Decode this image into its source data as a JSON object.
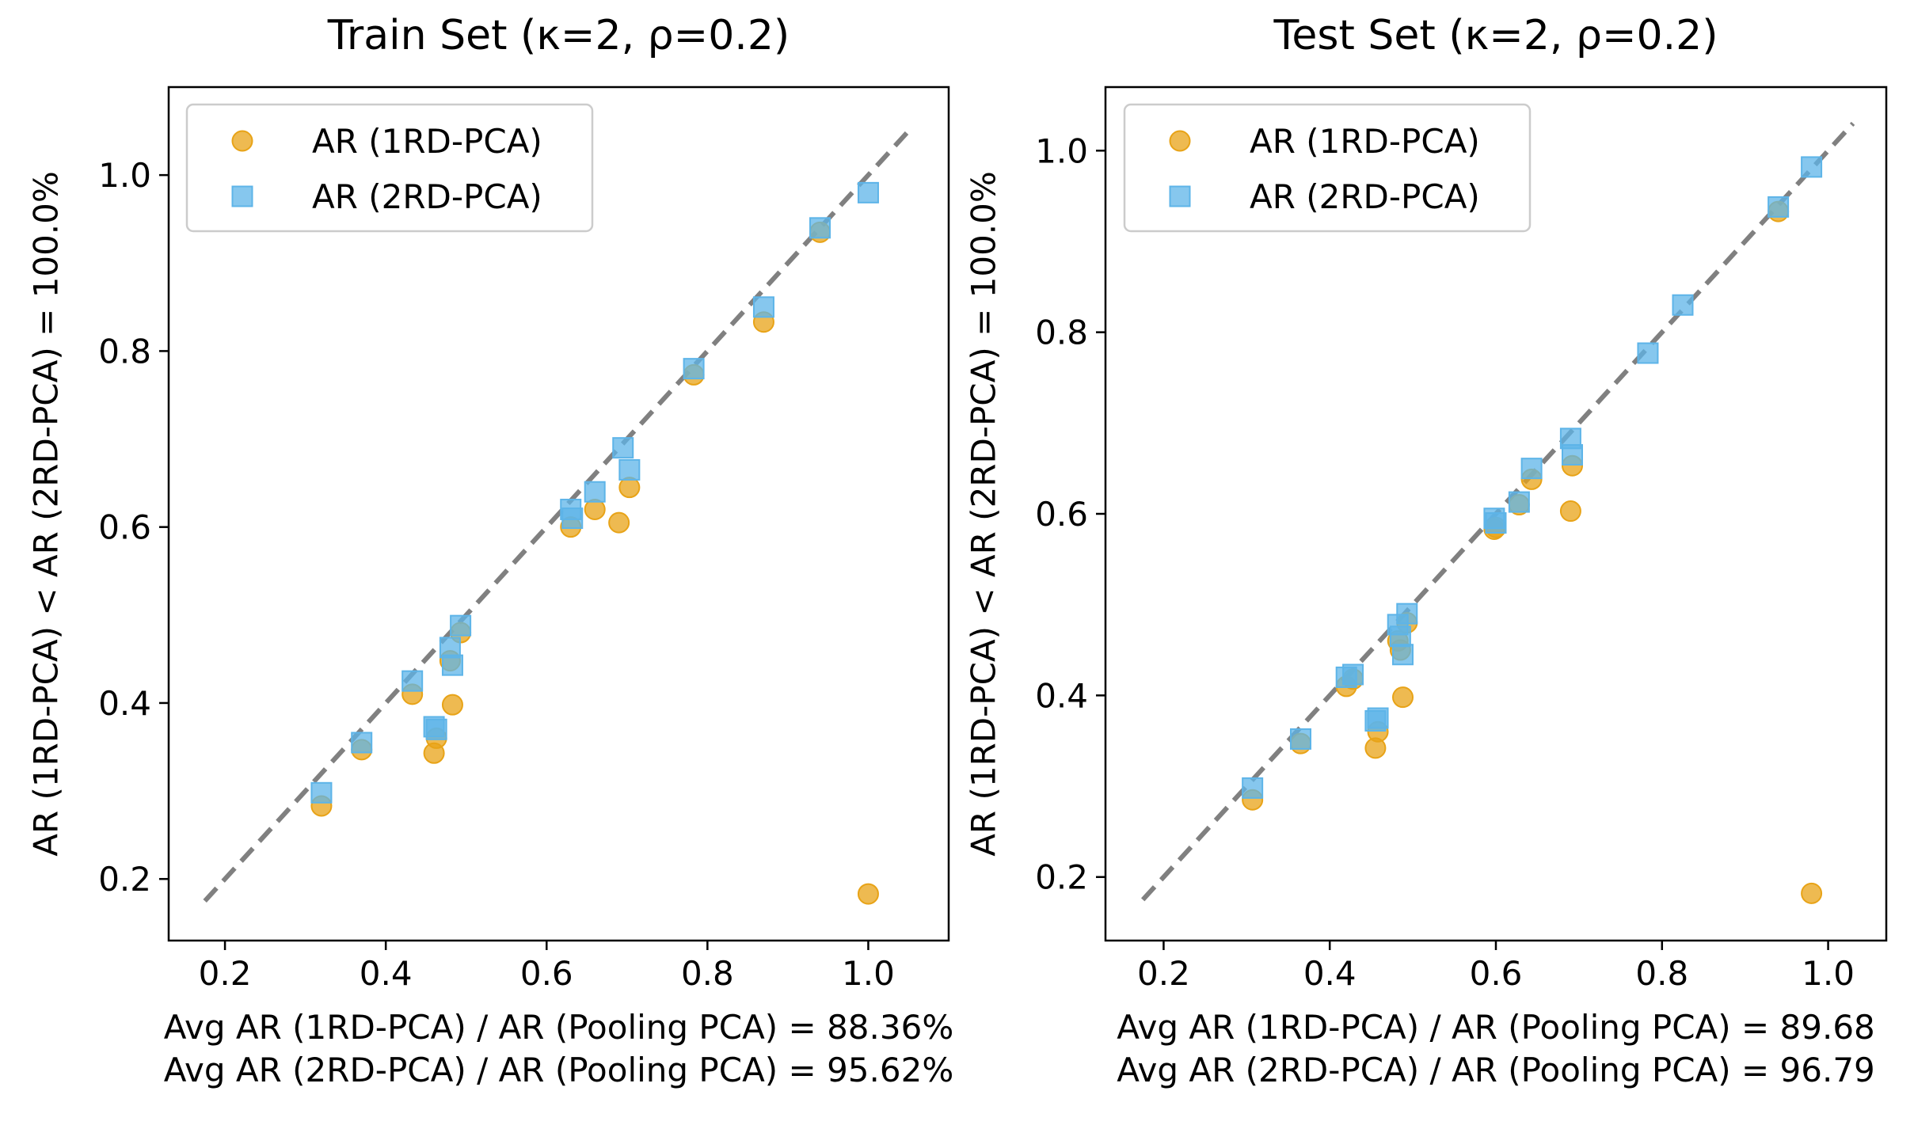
{
  "colors": {
    "ar_1rd": "#E8A317",
    "ar_2rd": "#5DB4E8",
    "diagonal": "#808080",
    "axis": "#000000",
    "legend_border": "#cccccc"
  },
  "legend": [
    {
      "label": "AR (1RD-PCA)",
      "marker": "circle",
      "color": "#E8A317"
    },
    {
      "label": "AR (2RD-PCA)",
      "marker": "square",
      "color": "#5DB4E8"
    }
  ],
  "chart_data": [
    {
      "type": "scatter",
      "title": "Train Set (κ=2, ρ=0.2)",
      "ylabel": "AR (1RD-PCA) < AR (2RD-PCA) = 100.0%",
      "xlabel": [
        "Avg AR (1RD-PCA) / AR (Pooling PCA) = 88.36%",
        "Avg AR (2RD-PCA) / AR (Pooling PCA) = 95.62%"
      ],
      "xlim": [
        0.13,
        1.1
      ],
      "ylim": [
        0.13,
        1.1
      ],
      "xticks": [
        0.2,
        0.4,
        0.6,
        0.8,
        1.0
      ],
      "yticks": [
        0.2,
        0.4,
        0.6,
        0.8,
        1.0
      ],
      "tick_labels": [
        "0.2",
        "0.4",
        "0.6",
        "0.8",
        "1.0"
      ],
      "grid": false,
      "legend_position": "upper-left",
      "diagonal": [
        0.175,
        1.05
      ],
      "series": [
        {
          "name": "AR (1RD-PCA)",
          "x": [
            0.32,
            0.37,
            0.433,
            0.46,
            0.463,
            0.48,
            0.483,
            0.493,
            0.63,
            0.66,
            0.69,
            0.703,
            0.783,
            0.87,
            0.94,
            1.0
          ],
          "y": [
            0.283,
            0.347,
            0.41,
            0.343,
            0.36,
            0.448,
            0.398,
            0.48,
            0.6,
            0.62,
            0.605,
            0.645,
            0.773,
            0.833,
            0.935,
            0.183
          ]
        },
        {
          "name": "AR (2RD-PCA)",
          "x": [
            0.32,
            0.37,
            0.433,
            0.46,
            0.463,
            0.48,
            0.483,
            0.493,
            0.63,
            0.632,
            0.66,
            0.695,
            0.703,
            0.783,
            0.87,
            0.94,
            1.0
          ],
          "y": [
            0.298,
            0.355,
            0.425,
            0.373,
            0.37,
            0.463,
            0.443,
            0.488,
            0.62,
            0.61,
            0.64,
            0.69,
            0.665,
            0.78,
            0.85,
            0.94,
            0.98
          ]
        }
      ]
    },
    {
      "type": "scatter",
      "title": "Test Set (κ=2, ρ=0.2)",
      "ylabel": "AR (1RD-PCA) < AR (2RD-PCA) = 100.0%",
      "xlabel": [
        "Avg AR (1RD-PCA) / AR (Pooling PCA) = 89.68",
        "Avg AR (2RD-PCA) / AR (Pooling PCA) = 96.79"
      ],
      "xlim": [
        0.13,
        1.07
      ],
      "ylim": [
        0.13,
        1.07
      ],
      "xticks": [
        0.2,
        0.4,
        0.6,
        0.8,
        1.0
      ],
      "yticks": [
        0.2,
        0.4,
        0.6,
        0.8,
        1.0
      ],
      "tick_labels": [
        "0.2",
        "0.4",
        "0.6",
        "0.8",
        "1.0"
      ],
      "grid": false,
      "legend_position": "upper-left",
      "diagonal": [
        0.175,
        1.03
      ],
      "series": [
        {
          "name": "AR (1RD-PCA)",
          "x": [
            0.307,
            0.365,
            0.42,
            0.428,
            0.455,
            0.458,
            0.482,
            0.485,
            0.488,
            0.493,
            0.598,
            0.6,
            0.628,
            0.643,
            0.69,
            0.692,
            0.94,
            0.98
          ],
          "y": [
            0.285,
            0.347,
            0.41,
            0.418,
            0.342,
            0.36,
            0.46,
            0.45,
            0.398,
            0.48,
            0.583,
            0.585,
            0.61,
            0.638,
            0.603,
            0.653,
            0.933,
            0.182
          ]
        },
        {
          "name": "AR (2RD-PCA)",
          "x": [
            0.307,
            0.365,
            0.42,
            0.428,
            0.455,
            0.458,
            0.482,
            0.485,
            0.488,
            0.493,
            0.598,
            0.6,
            0.628,
            0.643,
            0.69,
            0.692,
            0.783,
            0.825,
            0.94,
            0.98
          ],
          "y": [
            0.298,
            0.352,
            0.42,
            0.423,
            0.372,
            0.375,
            0.478,
            0.465,
            0.445,
            0.49,
            0.595,
            0.59,
            0.613,
            0.65,
            0.683,
            0.665,
            0.777,
            0.83,
            0.938,
            0.982
          ]
        }
      ]
    }
  ]
}
